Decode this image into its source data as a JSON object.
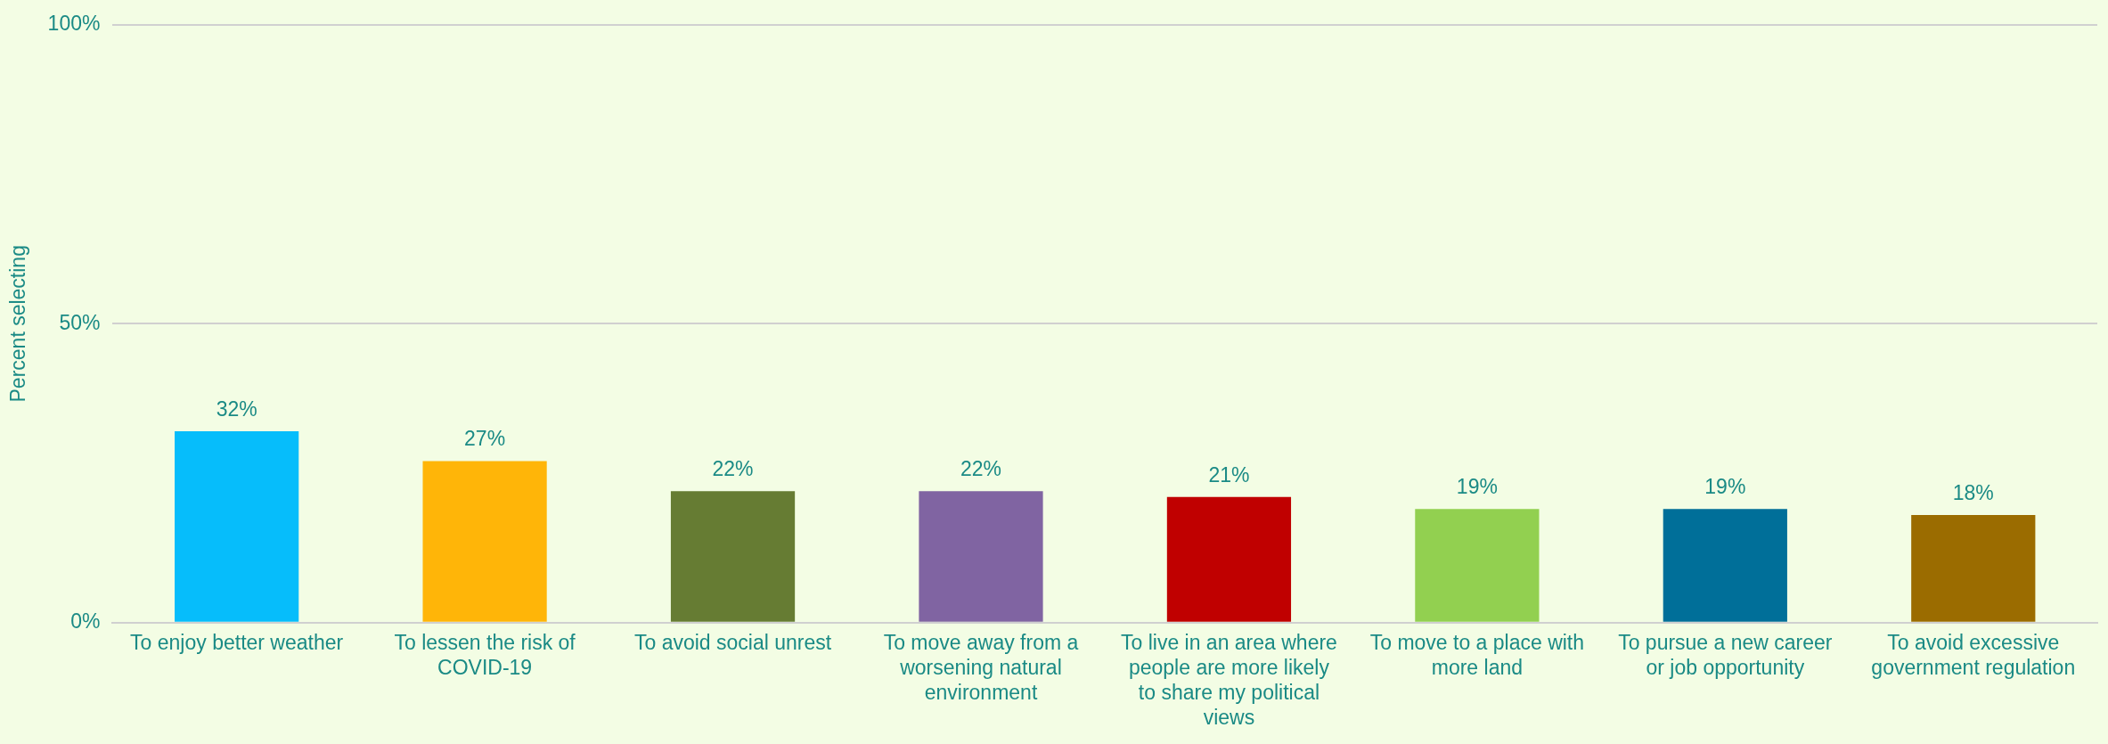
{
  "chart_data": {
    "type": "bar",
    "ylabel": "Percent selecting",
    "categories": [
      "To enjoy better weather",
      "To lessen the risk of COVID-19",
      "To avoid social unrest",
      "To move away from a worsening natural environment",
      "To live in an area where people are more likely to share my political views",
      "To move to a place with more land",
      "To pursue a new career or job opportunity",
      "To avoid excessive government regulation"
    ],
    "values": [
      32,
      27,
      22,
      22,
      21,
      19,
      19,
      18
    ],
    "value_labels": [
      "32%",
      "27%",
      "22%",
      "22%",
      "21%",
      "19%",
      "19%",
      "18%"
    ],
    "colors": [
      "#06bdfb",
      "#ffb508",
      "#667c33",
      "#8064a2",
      "#c00000",
      "#92d050",
      "#006f99",
      "#9b6c00"
    ],
    "ylim": [
      0,
      100
    ],
    "yticks": [
      {
        "value": 0,
        "label": "0%"
      },
      {
        "value": 50,
        "label": "50%"
      },
      {
        "value": 100,
        "label": "100%"
      }
    ],
    "grid": "y",
    "legend": false
  }
}
